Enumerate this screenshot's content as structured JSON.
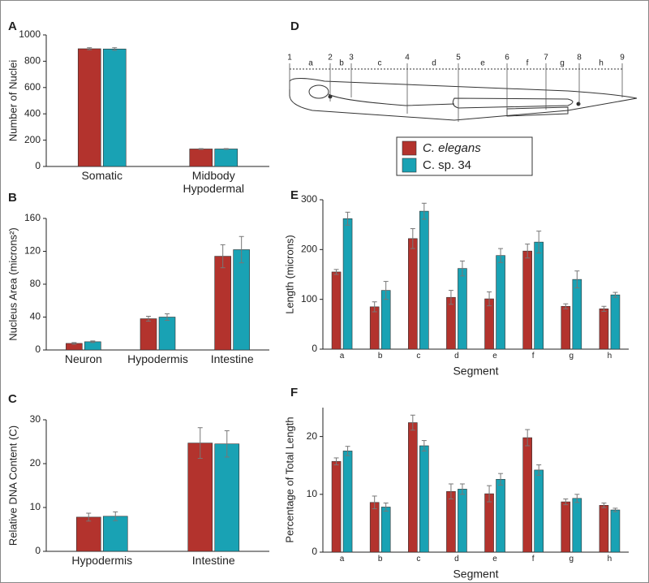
{
  "legend": [
    {
      "name": "C. elegans",
      "color": "#b3332d"
    },
    {
      "name": "C. sp. 34",
      "color": "#19a2b4"
    }
  ],
  "diagram": {
    "label": "D",
    "boundaries": [
      "1",
      "2",
      "3",
      "4",
      "5",
      "6",
      "7",
      "8",
      "9"
    ],
    "segments": [
      "a",
      "b",
      "c",
      "d",
      "e",
      "f",
      "g",
      "h"
    ]
  },
  "chart_data": [
    {
      "type": "bar",
      "label": "A",
      "ylabel": "Number of  Nuclei",
      "categories": [
        "Somatic",
        "Midbody Hypodermal"
      ],
      "series": [
        {
          "color": "#b3332d",
          "values": [
            895,
            133
          ],
          "errors": [
            8,
            3
          ]
        },
        {
          "color": "#19a2b4",
          "values": [
            893,
            133
          ],
          "errors": [
            10,
            3
          ]
        }
      ],
      "ylim": [
        0,
        1000
      ],
      "yticks": [
        0,
        200,
        400,
        600,
        800,
        1000
      ]
    },
    {
      "type": "bar",
      "label": "B",
      "ylabel": "Nucleus Area (microns²)",
      "categories": [
        "Neuron",
        "Hypodermis",
        "Intestine"
      ],
      "series": [
        {
          "color": "#b3332d",
          "values": [
            8,
            38,
            114
          ],
          "errors": [
            1,
            3,
            14
          ]
        },
        {
          "color": "#19a2b4",
          "values": [
            10,
            40,
            122
          ],
          "errors": [
            1,
            4,
            16
          ]
        }
      ],
      "ylim": [
        0,
        160
      ],
      "yticks": [
        0,
        40,
        80,
        120,
        160
      ]
    },
    {
      "type": "bar",
      "label": "C",
      "ylabel": "Relative DNA Content (C)",
      "categories": [
        "Hypodermis",
        "Intestine"
      ],
      "series": [
        {
          "color": "#b3332d",
          "values": [
            7.8,
            24.7
          ],
          "errors": [
            0.9,
            3.5
          ]
        },
        {
          "color": "#19a2b4",
          "values": [
            8.0,
            24.5
          ],
          "errors": [
            1.0,
            3.0
          ]
        }
      ],
      "ylim": [
        0,
        30
      ],
      "yticks": [
        0,
        10,
        20,
        30
      ]
    },
    {
      "type": "bar",
      "label": "E",
      "ylabel": "Length (microns)",
      "xlabel": "Segment",
      "categories": [
        "a",
        "b",
        "c",
        "d",
        "e",
        "f",
        "g",
        "h"
      ],
      "series": [
        {
          "color": "#b3332d",
          "values": [
            155,
            85,
            222,
            104,
            101,
            197,
            86,
            81
          ],
          "errors": [
            5,
            10,
            20,
            14,
            14,
            14,
            5,
            5
          ]
        },
        {
          "color": "#19a2b4",
          "values": [
            262,
            118,
            277,
            162,
            188,
            215,
            140,
            109
          ],
          "errors": [
            13,
            18,
            16,
            15,
            14,
            22,
            17,
            5
          ]
        }
      ],
      "ylim": [
        0,
        300
      ],
      "yticks": [
        0,
        100,
        200,
        300
      ]
    },
    {
      "type": "bar",
      "label": "F",
      "ylabel": "Percentage of Total Length",
      "xlabel": "Segment",
      "categories": [
        "a",
        "b",
        "c",
        "d",
        "e",
        "f",
        "g",
        "h"
      ],
      "series": [
        {
          "color": "#b3332d",
          "values": [
            15.7,
            8.6,
            22.4,
            10.5,
            10.1,
            19.8,
            8.7,
            8.1
          ],
          "errors": [
            0.6,
            1.1,
            1.3,
            1.3,
            1.4,
            1.4,
            0.5,
            0.4
          ]
        },
        {
          "color": "#19a2b4",
          "values": [
            17.5,
            7.8,
            18.4,
            10.9,
            12.6,
            14.2,
            9.3,
            7.3
          ],
          "errors": [
            0.8,
            0.7,
            0.9,
            0.9,
            1.0,
            0.9,
            0.7,
            0.3
          ]
        }
      ],
      "ylim": [
        0,
        25
      ],
      "yticks": [
        0,
        10,
        20
      ]
    }
  ]
}
